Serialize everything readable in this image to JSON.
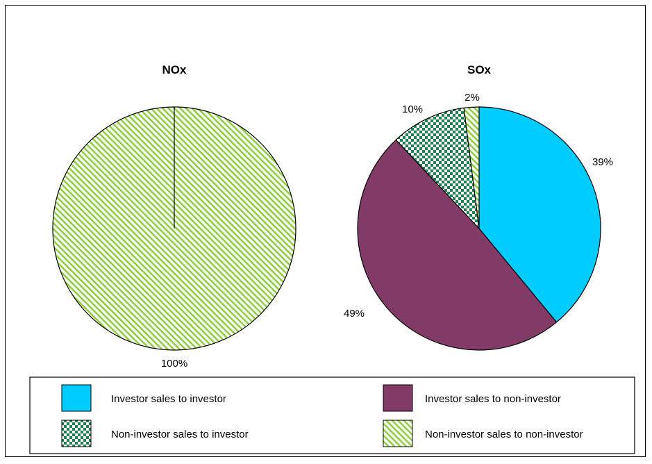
{
  "chart_data": [
    {
      "type": "pie",
      "title": "NOx",
      "slices": [
        {
          "name": "Investor sales to investor",
          "value": 0,
          "label": ""
        },
        {
          "name": "Investor sales to non-investor",
          "value": 0,
          "label": ""
        },
        {
          "name": "Non-investor sales to investor",
          "value": 0,
          "label": ""
        },
        {
          "name": "Non-investor sales to non-investor",
          "value": 100,
          "label": "100%"
        }
      ]
    },
    {
      "type": "pie",
      "title": "SOx",
      "slices": [
        {
          "name": "Investor sales to investor",
          "value": 39,
          "label": "39%"
        },
        {
          "name": "Investor sales to non-investor",
          "value": 49,
          "label": "49%"
        },
        {
          "name": "Non-investor sales to investor",
          "value": 10,
          "label": "10%"
        },
        {
          "name": "Non-investor sales to non-investor",
          "value": 2,
          "label": "2%"
        }
      ]
    }
  ],
  "legend": {
    "placement": "bottom",
    "items": [
      {
        "label": "Investor sales to investor",
        "color": "#00CCFF",
        "pattern": "solid"
      },
      {
        "label": "Investor sales to non-investor",
        "color": "#823B66",
        "pattern": "solid"
      },
      {
        "label": "Non-investor sales to investor",
        "color": "#1E7F50",
        "pattern": "checker"
      },
      {
        "label": "Non-investor sales to non-investor",
        "color": "#8FCF3F",
        "pattern": "diagonal-stripes"
      }
    ]
  }
}
